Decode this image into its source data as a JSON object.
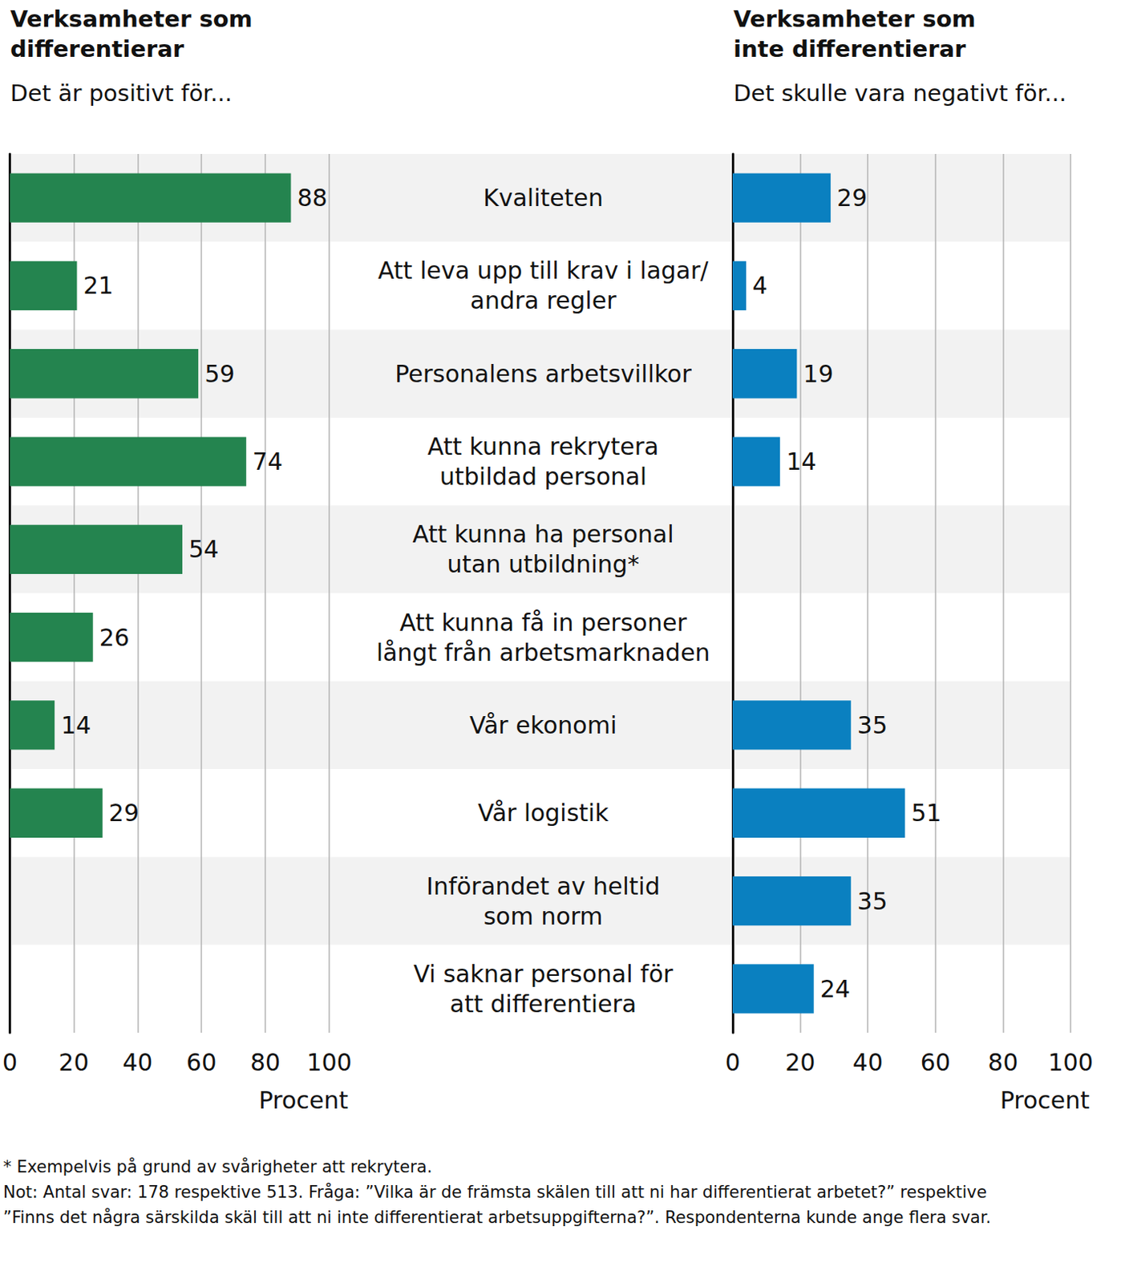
{
  "chart_data": [
    {
      "type": "bar",
      "title": "Verksamheter som\ndifferentierar",
      "subtitle": "Det är positivt för...",
      "xlabel": "Procent",
      "categories": [
        "Kvaliteten",
        "Att leva upp till krav i lagar/\nandra regler",
        "Personalens arbetsvillkor",
        "Att kunna rekrytera\nutbildad personal",
        "Att kunna ha personal\nutan utbildning*",
        "Att kunna få in personer\nlångt från arbetsmarknaden",
        "Vår ekonomi",
        "Vår logistik",
        "Införandet av heltid\nsom norm",
        "Vi saknar personal för\natt differentiera"
      ],
      "values": [
        88,
        21,
        59,
        74,
        54,
        26,
        14,
        29,
        null,
        null
      ],
      "color": "#24844f",
      "xlim": [
        0,
        100
      ],
      "xticks": [
        0,
        20,
        40,
        60,
        80,
        100
      ],
      "orientation": "horizontal",
      "grid": true,
      "data_labels": true,
      "tick_labels": "x"
    },
    {
      "type": "bar",
      "title": "Verksamheter som\ninte differentierar",
      "subtitle": "Det skulle vara negativt för...",
      "xlabel": "Procent",
      "categories": [
        "Kvaliteten",
        "Att leva upp till krav i lagar/\nandra regler",
        "Personalens arbetsvillkor",
        "Att kunna rekrytera\nutbildad personal",
        "Att kunna ha personal\nutan utbildning*",
        "Att kunna få in personer\nlångt från arbetsmarknaden",
        "Vår ekonomi",
        "Vår logistik",
        "Införandet av heltid\nsom norm",
        "Vi saknar personal för\natt differentiera"
      ],
      "values": [
        29,
        4,
        19,
        14,
        null,
        null,
        35,
        51,
        35,
        24
      ],
      "color": "#0a80c0",
      "xlim": [
        0,
        100
      ],
      "xticks": [
        0,
        20,
        40,
        60,
        80,
        100
      ],
      "orientation": "horizontal",
      "grid": true,
      "data_labels": true,
      "tick_labels": true
    }
  ],
  "footnotes": [
    "* Exempelvis på grund av svårigheter att rekrytera.",
    "Not: Antal svar: 178 respektive 513. Fråga: ”Vilka är de främsta skälen till att ni har differentierat arbetet?” respektive ”Finns det några särskilda skäl till att ni inte differentierat arbetsuppgifterna?”. Respondenterna kunde ange flera svar."
  ]
}
